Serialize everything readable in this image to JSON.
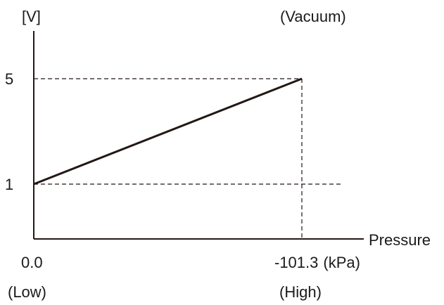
{
  "chart_data": {
    "type": "line",
    "ylabel": "[V]",
    "xlabel": "Pressure",
    "x_unit": "(kPa)",
    "x": [
      0.0,
      -101.3
    ],
    "y": [
      1,
      5
    ],
    "x_ticks": [
      "0.0",
      "-101.3"
    ],
    "y_ticks": [
      "1",
      "5"
    ],
    "annotations": {
      "top_right": "(Vacuum)",
      "bottom_left": "(Low)",
      "bottom_right": "(High)"
    },
    "xlim": [
      0.0,
      -101.3
    ],
    "ylim": [
      0,
      5
    ],
    "grid": false,
    "reference_lines": "dashed",
    "line_color": "#231815",
    "axis_color": "#231815"
  }
}
